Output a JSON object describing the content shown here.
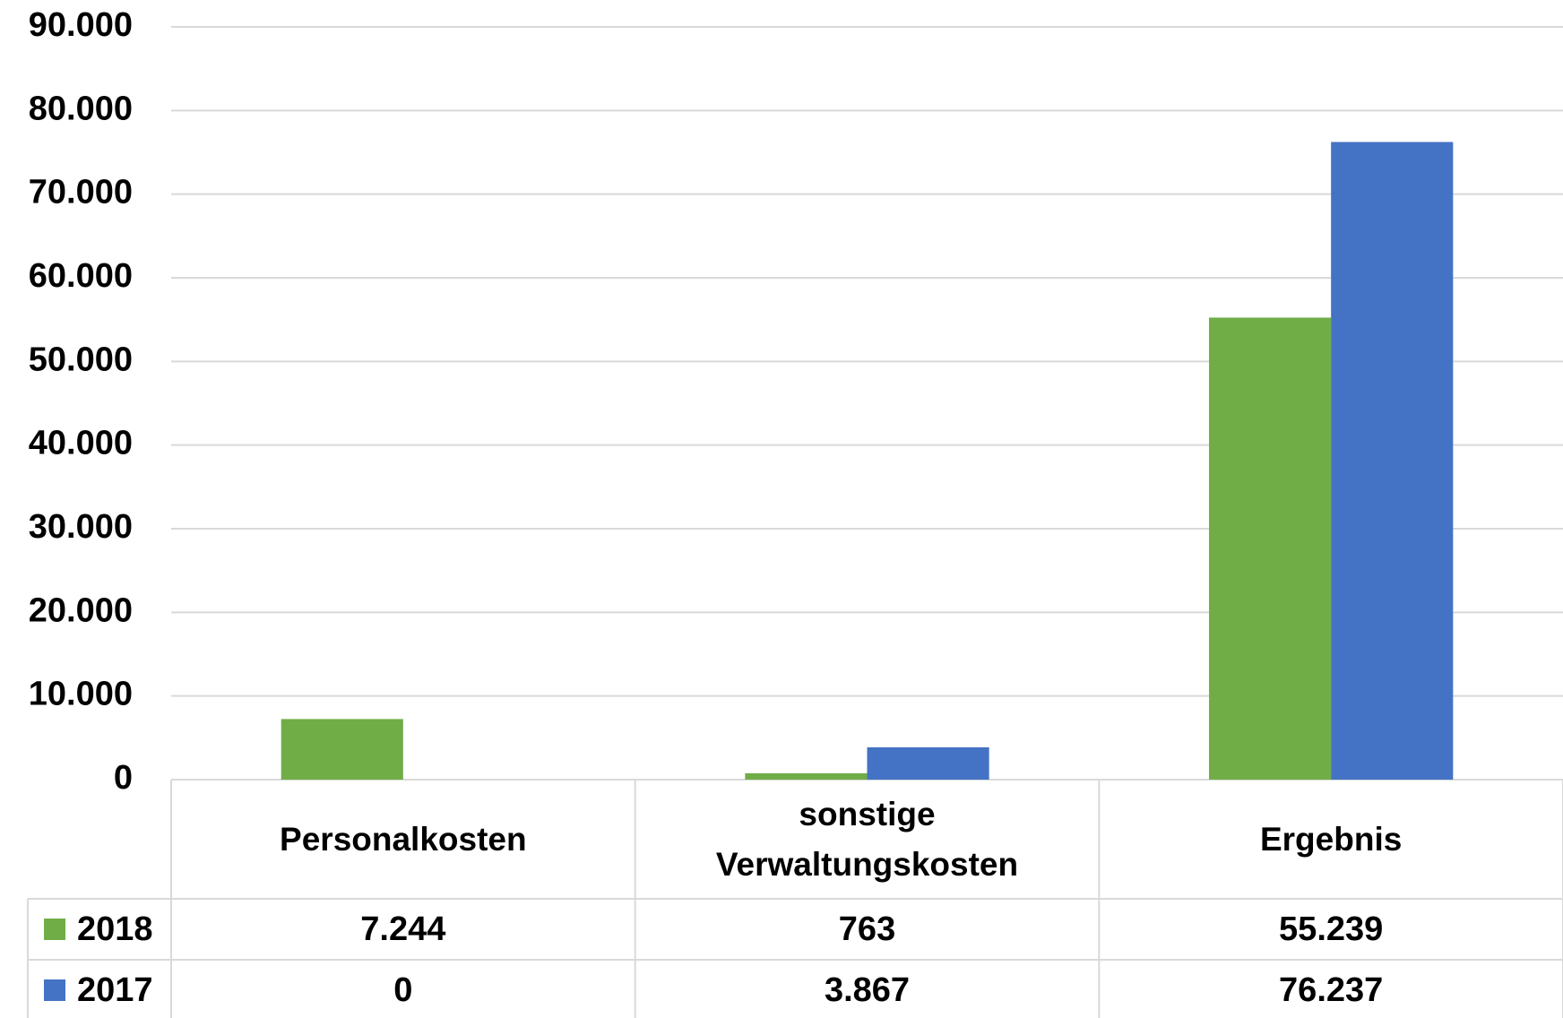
{
  "chart_data": {
    "type": "bar",
    "categories": [
      "Personalkosten",
      "sonstige Verwaltungskosten",
      "Ergebnis"
    ],
    "series": [
      {
        "name": "2018",
        "color": "#70ad47",
        "values": [
          7244,
          763,
          55239
        ],
        "value_labels": [
          "7.244",
          "763",
          "55.239"
        ]
      },
      {
        "name": "2017",
        "color": "#4472c4",
        "values": [
          0,
          3867,
          76237
        ],
        "value_labels": [
          "0",
          "3.867",
          "76.237"
        ]
      }
    ],
    "ylim": [
      0,
      90000
    ],
    "yticks": [
      0,
      {
        "value": 10000,
        "label": "10.000"
      },
      {
        "value": 20000,
        "label": "20.000"
      },
      {
        "value": 30000,
        "label": "30.000"
      },
      {
        "value": 40000,
        "label": "40.000"
      },
      {
        "value": 50000,
        "label": "50.000"
      },
      {
        "value": 60000,
        "label": "60.000"
      },
      {
        "value": 70000,
        "label": "70.000"
      },
      {
        "value": 80000,
        "label": "80.000"
      },
      {
        "value": 90000,
        "label": "90.000"
      }
    ],
    "grid": true
  }
}
